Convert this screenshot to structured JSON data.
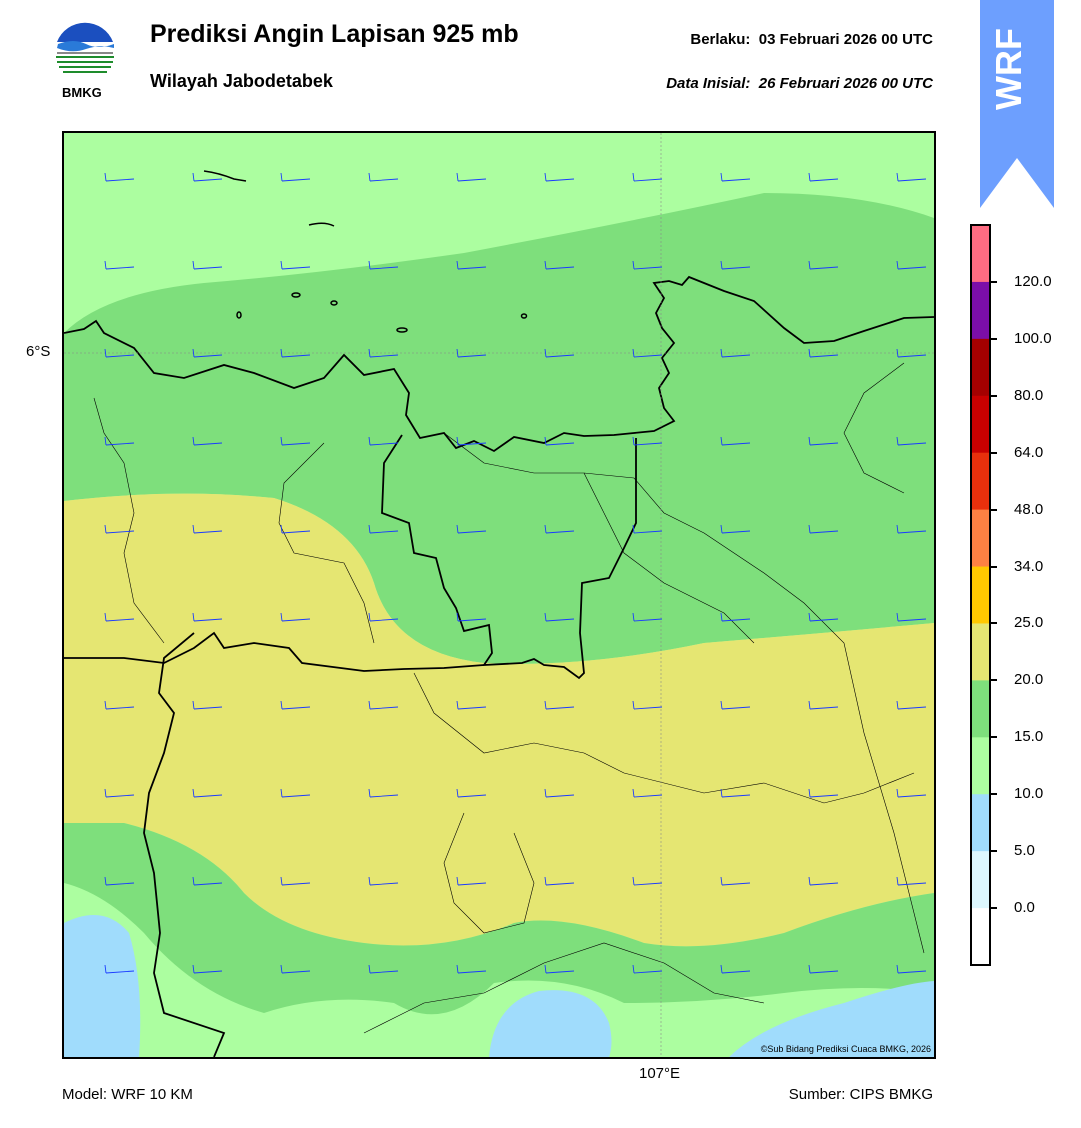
{
  "header": {
    "title": "Prediksi Angin Lapisan 925 mb",
    "subtitle": "Wilayah Jabodetabek",
    "valid_label": "Berlaku:",
    "valid_time": "03 Februari 2026 00 UTC",
    "init_label": "Data Inisial:",
    "init_time": "26 Februari 2026 00 UTC"
  },
  "logo": {
    "text": "BMKG",
    "icon": "bmkg-logo-icon"
  },
  "badge": {
    "text": "WRF",
    "color": "#6d9ffe"
  },
  "map": {
    "lat_label": "6°S",
    "lon_label": "107°E",
    "copyright": "©Sub Bidang Prediksi Cuaca BMKG, 2026",
    "wind_barb_color": "#1a3bff",
    "fill_colors": {
      "5-10": "#a0dcfc",
      "10-15": "#acfea0",
      "15-20": "#7edf7c",
      "20-25": "#e5e672"
    }
  },
  "colorbar": {
    "labels": [
      "120.0",
      "100.0",
      "80.0",
      "64.0",
      "48.0",
      "34.0",
      "25.0",
      "20.0",
      "15.0",
      "10.0",
      "5.0",
      "0.0"
    ],
    "colors": [
      "#fe6c82",
      "#7b0ea8",
      "#a40000",
      "#c80000",
      "#e8300c",
      "#fd8143",
      "#ffc800",
      "#e5e672",
      "#7edf7c",
      "#acfea0",
      "#a0dcfc",
      "#ddf7fe",
      "#ffffff"
    ]
  },
  "footer": {
    "model": "Model: WRF 10 KM",
    "source": "Sumber: CIPS BMKG"
  }
}
